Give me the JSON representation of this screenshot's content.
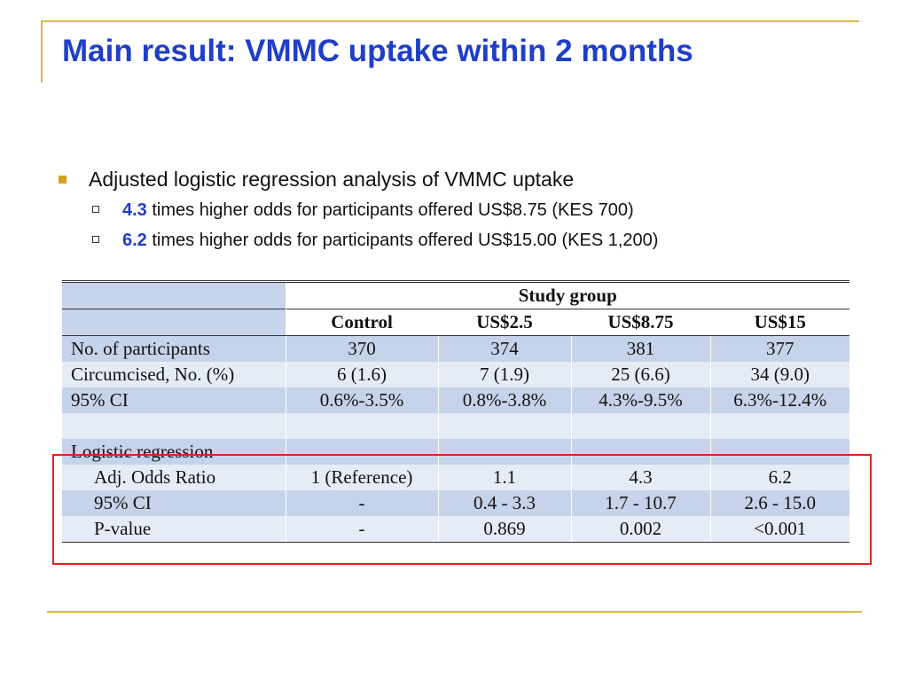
{
  "title": "Main result: VMMC uptake within 2 months",
  "bullets": {
    "main": "Adjusted logistic regression analysis of VMMC uptake",
    "sub": [
      {
        "num": "4.3",
        "text": " times higher odds for participants offered US$8.75 (KES 700)"
      },
      {
        "num": "6.2",
        "text": " times higher odds for participants offered US$15.00 (KES 1,200)"
      }
    ]
  },
  "table": {
    "group_header": "Study group",
    "columns": [
      "Control",
      "US$2.5",
      "US$8.75",
      "US$15"
    ],
    "rows": [
      {
        "label": "No. of participants",
        "values": [
          "370",
          "374",
          "381",
          "377"
        ]
      },
      {
        "label": "Circumcised, No. (%)",
        "values": [
          "6 (1.6)",
          "7 (1.9)",
          "25 (6.6)",
          "34 (9.0)"
        ]
      },
      {
        "label": "95% CI",
        "values": [
          "0.6%-3.5%",
          "0.8%-3.8%",
          "4.3%-9.5%",
          "6.3%-12.4%"
        ]
      },
      {
        "label": "",
        "values": [
          "",
          "",
          "",
          ""
        ]
      },
      {
        "label": "Logistic regression",
        "values": [
          "",
          "",
          "",
          ""
        ]
      },
      {
        "label": "Adj. Odds Ratio",
        "values": [
          "1 (Reference)",
          "1.1",
          "4.3",
          "6.2"
        ]
      },
      {
        "label": "95% CI",
        "values": [
          "-",
          "0.4 - 3.3",
          "1.7 - 10.7",
          "2.6 - 15.0"
        ]
      },
      {
        "label": "P-value",
        "values": [
          "-",
          "0.869",
          "0.002",
          "<0.001"
        ]
      }
    ]
  },
  "colors": {
    "title": "#1f3fc8",
    "accent_rule": "#e0b74a",
    "row_blue": "#c5d4ea",
    "row_pale": "#e6ecf6",
    "highlight": "#e02020"
  }
}
